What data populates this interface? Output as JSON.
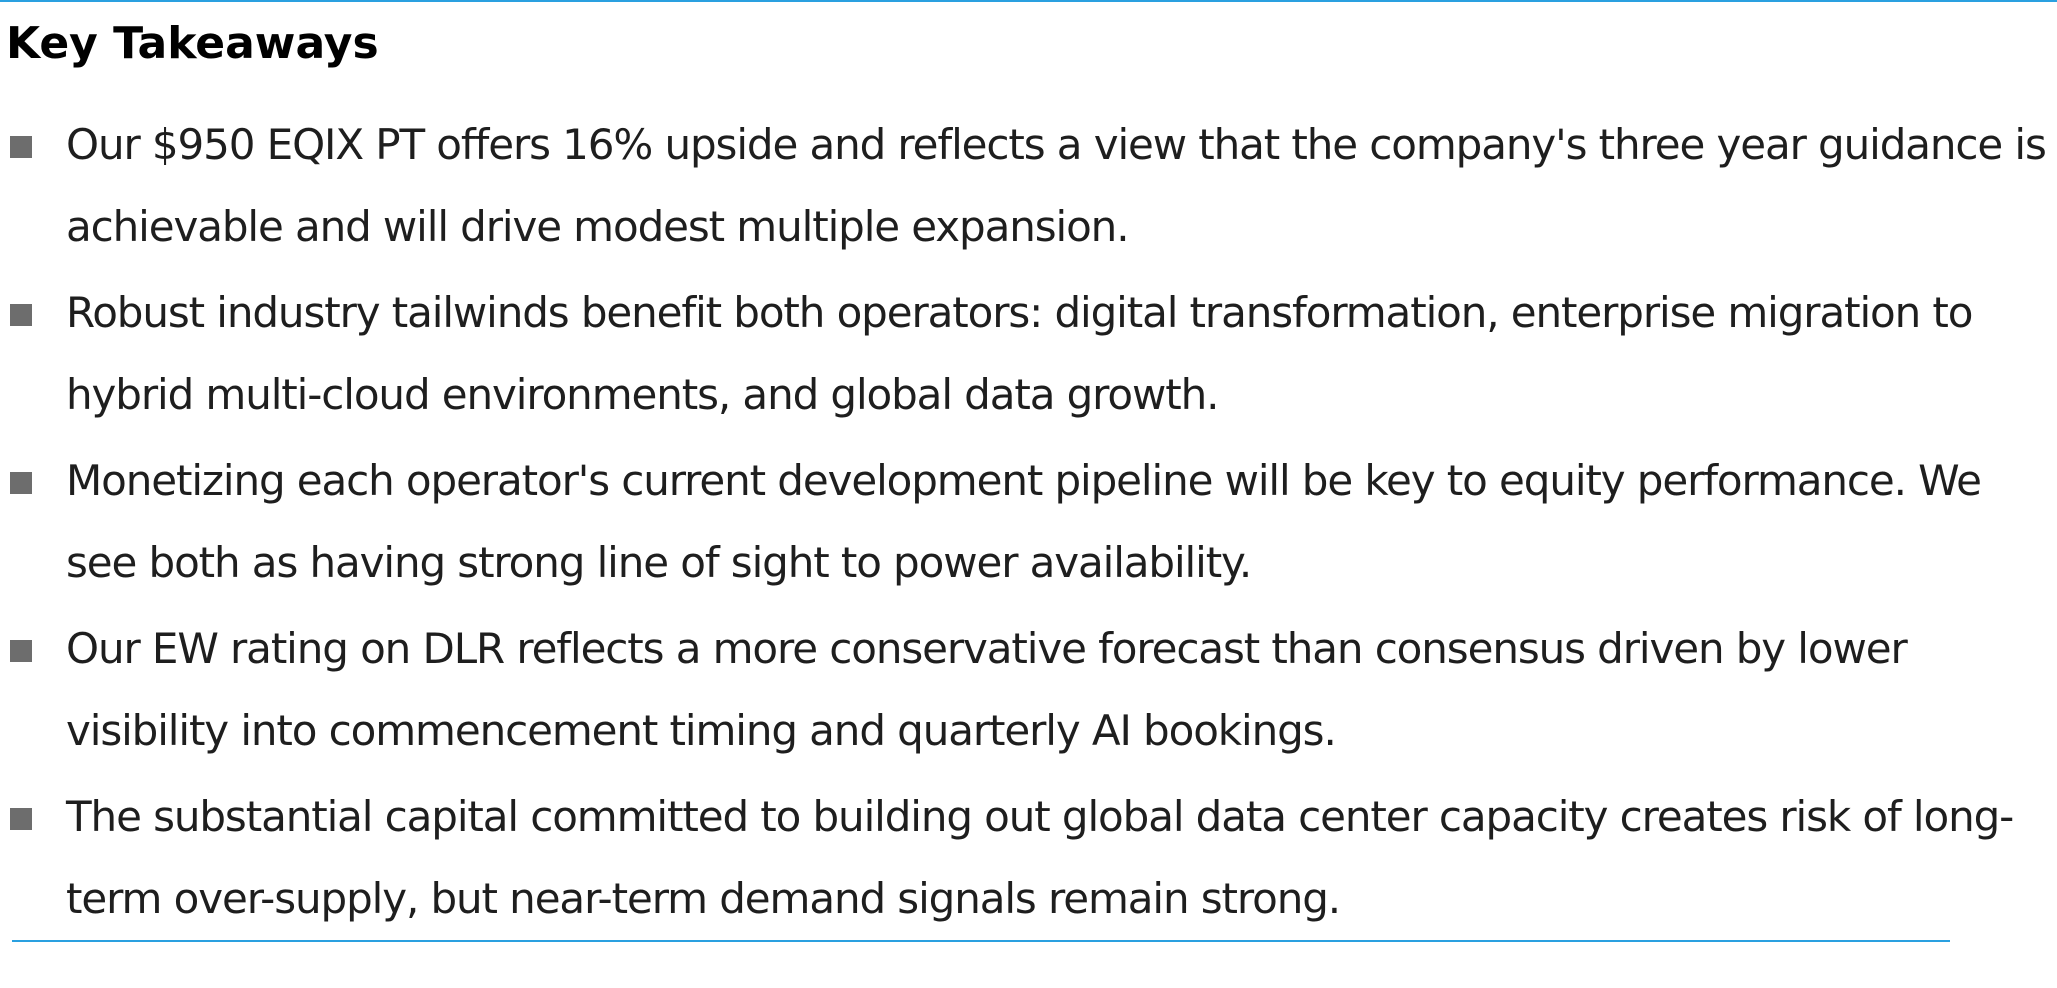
{
  "section": {
    "title": "Key Takeaways",
    "accent_color": "#2aa0e0",
    "bullet_color": "#6d6d6d"
  },
  "takeaways": [
    {
      "text": "Our $950 EQIX PT offers 16% upside and reflects a view that the company's three year guidance is achievable and will drive modest multiple expansion."
    },
    {
      "text": "Robust industry tailwinds benefit both operators: digital transformation, enterprise migration to hybrid multi-cloud environments, and global data growth."
    },
    {
      "text": "Monetizing each operator's current development pipeline will be key to equity performance. We see both as having strong line of sight to power availability."
    },
    {
      "text": "Our EW rating on DLR reflects a more conservative forecast than consensus driven by lower visibility into commencement timing and quarterly AI bookings."
    },
    {
      "text": "The substantial capital committed to building out global data center capacity creates risk of long-term over-supply, but near-term demand signals remain strong."
    }
  ]
}
